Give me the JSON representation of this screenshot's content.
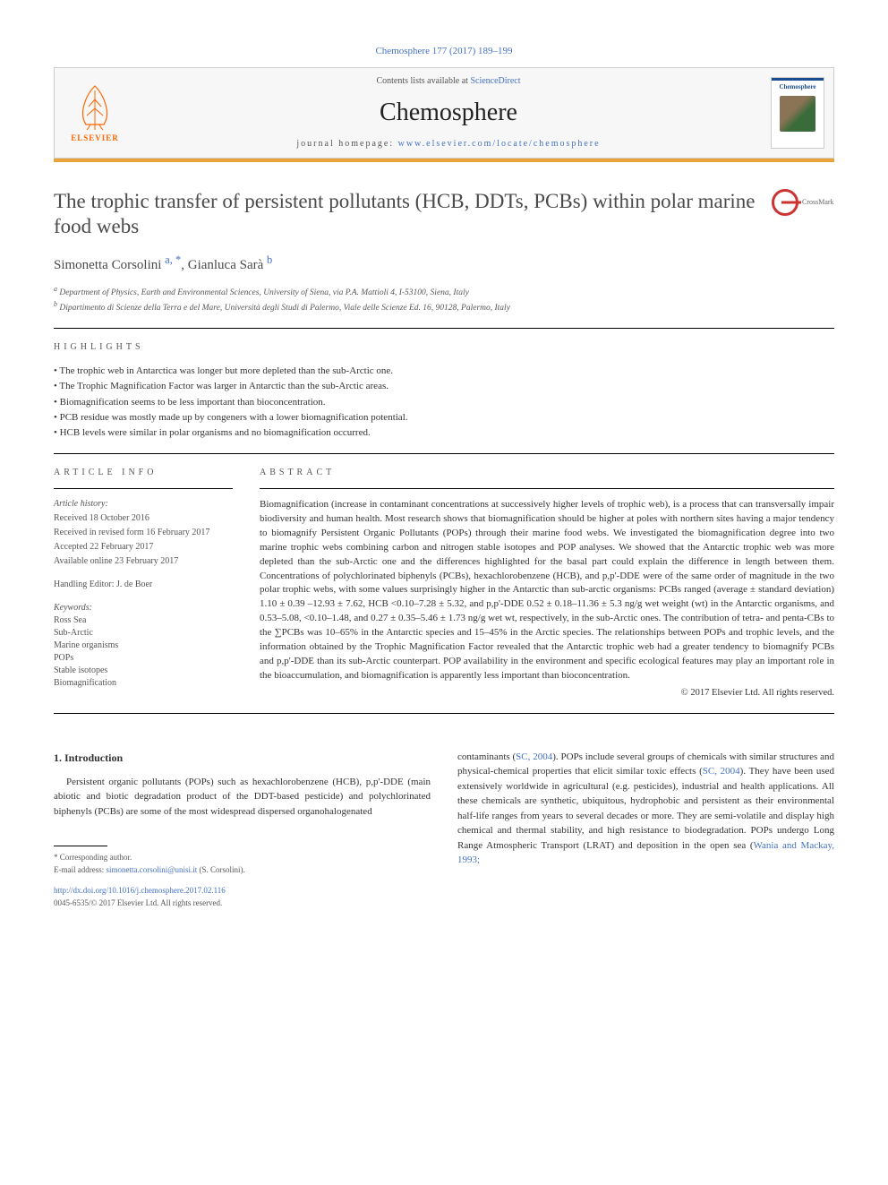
{
  "meta": {
    "top_citation": "Chemosphere 177 (2017) 189–199",
    "contents_text": "Contents lists available at ",
    "contents_link": "ScienceDirect",
    "journal": "Chemosphere",
    "homepage_label": "journal homepage: ",
    "homepage_url": "www.elsevier.com/locate/chemosphere",
    "publisher": "ELSEVIER"
  },
  "cover": {
    "title": "Chemosphere"
  },
  "title": "The trophic transfer of persistent pollutants (HCB, DDTs, PCBs) within polar marine food webs",
  "crossmark_label": "CrossMark",
  "authors_html": "Simonetta Corsolini <sup><a>a, *</a></sup>, Gianluca Sarà <sup><a>b</a></sup>",
  "affiliations": [
    "a Department of Physics, Earth and Environmental Sciences, University of Siena, via P.A. Mattioli 4, I-53100, Siena, Italy",
    "b Dipartimento di Scienze della Terra e del Mare, Università degli Studi di Palermo, Viale delle Scienze Ed. 16, 90128, Palermo, Italy"
  ],
  "highlights_label": "HIGHLIGHTS",
  "highlights": [
    "• The trophic web in Antarctica was longer but more depleted than the sub-Arctic one.",
    "• The Trophic Magnification Factor was larger in Antarctic than the sub-Arctic areas.",
    "• Biomagnification seems to be less important than bioconcentration.",
    "• PCB residue was mostly made up by congeners with a lower biomagnification potential.",
    "• HCB levels were similar in polar organisms and no biomagnification occurred."
  ],
  "article_info_label": "ARTICLE INFO",
  "abstract_label": "ABSTRACT",
  "history": {
    "heading": "Article history:",
    "received": "Received 18 October 2016",
    "revised": "Received in revised form 16 February 2017",
    "accepted": "Accepted 22 February 2017",
    "online": "Available online 23 February 2017"
  },
  "editor": "Handling Editor: J. de Boer",
  "keywords_label": "Keywords:",
  "keywords": [
    "Ross Sea",
    "Sub-Arctic",
    "Marine organisms",
    "POPs",
    "Stable isotopes",
    "Biomagnification"
  ],
  "abstract": "Biomagnification (increase in contaminant concentrations at successively higher levels of trophic web), is a process that can transversally impair biodiversity and human health. Most research shows that biomagnification should be higher at poles with northern sites having a major tendency to biomagnify Persistent Organic Pollutants (POPs) through their marine food webs. We investigated the biomagnification degree into two marine trophic webs combining carbon and nitrogen stable isotopes and POP analyses. We showed that the Antarctic trophic web was more depleted than the sub-Arctic one and the differences highlighted for the basal part could explain the difference in length between them. Concentrations of polychlorinated biphenyls (PCBs), hexachlorobenzene (HCB), and p,p'-DDE were of the same order of magnitude in the two polar trophic webs, with some values surprisingly higher in the Antarctic than sub-arctic organisms: PCBs ranged (average ± standard deviation) 1.10 ± 0.39 –12.93 ± 7.62, HCB <0.10–7.28 ± 5.32, and p,p'-DDE 0.52 ± 0.18–11.36 ± 5.3 ng/g wet weight (wt) in the Antarctic organisms, and 0.53–5.08, <0.10–1.48, and 0.27 ± 0.35–5.46 ± 1.73 ng/g wet wt, respectively, in the sub-Arctic ones. The contribution of tetra- and penta-CBs to the ∑PCBs was 10–65% in the Antarctic species and 15–45% in the Arctic species. The relationships between POPs and trophic levels, and the information obtained by the Trophic Magnification Factor revealed that the Antarctic trophic web had a greater tendency to biomagnify PCBs and p,p'-DDE than its sub-Arctic counterpart. POP availability in the environment and specific ecological features may play an important role in the bioaccumulation, and biomagnification is apparently less important than bioconcentration.",
  "rights": "© 2017 Elsevier Ltd. All rights reserved.",
  "intro_heading": "1. Introduction",
  "intro_col1": "Persistent organic pollutants (POPs) such as hexachlorobenzene (HCB), p,p'-DDE (main abiotic and biotic degradation product of the DDT-based pesticide) and polychlorinated biphenyls (PCBs) are some of the most widespread dispersed organohalogenated",
  "intro_col2_pre": "contaminants (",
  "intro_col2_link1": "SC, 2004",
  "intro_col2_mid1": "). POPs include several groups of chemicals with similar structures and physical-chemical properties that elicit similar toxic effects (",
  "intro_col2_link2": "SC, 2004",
  "intro_col2_mid2": "). They have been used extensively worldwide in agricultural (e.g. pesticides), industrial and health applications. All these chemicals are synthetic, ubiquitous, hydrophobic and persistent as their environmental half-life ranges from years to several decades or more. They are semi-volatile and display high chemical and thermal stability, and high resistance to biodegradation. POPs undergo Long Range Atmospheric Transport (LRAT) and deposition in the open sea (",
  "intro_col2_link3": "Wania and Mackay, 1993;",
  "footnote_corr": "* Corresponding author.",
  "footnote_email_label": "E-mail address: ",
  "footnote_email": "simonetta.corsolini@unisi.it",
  "footnote_email_after": " (S. Corsolini).",
  "doi": "http://dx.doi.org/10.1016/j.chemosphere.2017.02.116",
  "issn_line": "0045-6535/© 2017 Elsevier Ltd. All rights reserved.",
  "colors": {
    "link": "#4472c4",
    "orange_bar": "#e8a33d",
    "elsevier_orange": "#ff6600",
    "journal_blue": "#1a4d8f",
    "crossmark_red": "#cc3333"
  }
}
